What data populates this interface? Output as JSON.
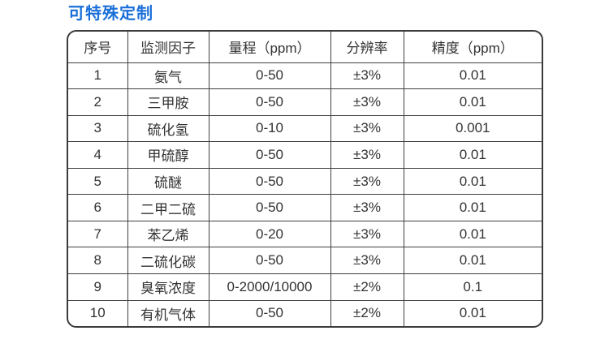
{
  "page": {
    "title": "可特殊定制",
    "colors": {
      "accent_blue": "#1a6fd8",
      "table_border": "#3b3b3b",
      "text": "#333333",
      "background": "#ffffff"
    }
  },
  "table": {
    "headers": [
      "序号",
      "监测因子",
      "量程（ppm）",
      "分辨率",
      "精度（ppm）"
    ],
    "rows": [
      [
        "1",
        "氨气",
        "0-50",
        "±3%",
        "0.01"
      ],
      [
        "2",
        "三甲胺",
        "0-50",
        "±3%",
        "0.01"
      ],
      [
        "3",
        "硫化氢",
        "0-10",
        "±3%",
        "0.001"
      ],
      [
        "4",
        "甲硫醇",
        "0-50",
        "±3%",
        "0.01"
      ],
      [
        "5",
        "硫醚",
        "0-50",
        "±3%",
        "0.01"
      ],
      [
        "6",
        "二甲二硫",
        "0-50",
        "±3%",
        "0.01"
      ],
      [
        "7",
        "苯乙烯",
        "0-20",
        "±3%",
        "0.01"
      ],
      [
        "8",
        "二硫化碳",
        "0-50",
        "±3%",
        "0.01"
      ],
      [
        "9",
        "臭氧浓度",
        "0-2000/10000",
        "±2%",
        "0.1"
      ],
      [
        "10",
        "有机气体",
        "0-50",
        "±2%",
        "0.01"
      ]
    ]
  }
}
